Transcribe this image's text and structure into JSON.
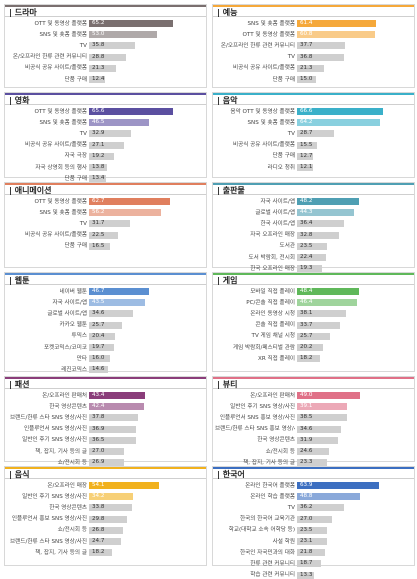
{
  "chart_data": [
    {
      "type": "bar",
      "title": "드라마",
      "color": "#7a6f6f",
      "categories": [
        "OTT 및 동영상 플랫폼",
        "SNS 및 숏폼 플랫폼",
        "TV",
        "온/오프라인 한류 관련 커뮤니티",
        "비공식 공유 사이트/플랫폼",
        "단품 구매"
      ],
      "values": [
        65.2,
        53.0,
        35.8,
        28.8,
        21.3,
        12.4
      ]
    },
    {
      "type": "bar",
      "title": "예능",
      "color": "#f5a83a",
      "categories": [
        "SNS 및 숏폼 플랫폼",
        "OTT 및 동영상 플랫폼",
        "온/오프라인 한류 관련 커뮤니티",
        "TV",
        "비공식 공유 사이트/플랫폼",
        "단품 구매"
      ],
      "values": [
        61.4,
        60.8,
        37.7,
        36.8,
        21.3,
        15.0
      ]
    },
    {
      "type": "bar",
      "title": "영화",
      "color": "#5b4fa0",
      "categories": [
        "OTT 및 동영상 플랫폼",
        "SNS 및 숏폼 플랫폼",
        "TV",
        "비공식 공유 사이트/플랫폼",
        "자국 극장",
        "자국 상영회 등의 행사",
        "단품 구매"
      ],
      "values": [
        65.6,
        46.5,
        32.9,
        27.1,
        19.2,
        13.8,
        13.4
      ]
    },
    {
      "type": "bar",
      "title": "음악",
      "color": "#3ab0c9",
      "categories": [
        "음악 OTT 및 동영상 플랫폼",
        "SNS 및 숏폼 플랫폼",
        "TV",
        "비공식 공유 사이트/플랫폼",
        "단품 구매",
        "라디오 청취"
      ],
      "values": [
        66.6,
        64.2,
        28.7,
        15.5,
        12.7,
        12.1
      ]
    },
    {
      "type": "bar",
      "title": "애니메이션",
      "color": "#e07f5e",
      "categories": [
        "OTT 및 동영상 플랫폼",
        "SNS 및 숏폼 플랫폼",
        "TV",
        "비공식 공유 사이트/플랫폼",
        "단품 구매"
      ],
      "values": [
        62.7,
        56.2,
        31.7,
        22.5,
        16.5
      ]
    },
    {
      "type": "bar",
      "title": "출판물",
      "color": "#4f9fb3",
      "categories": [
        "자국 사이트/앱",
        "글로벌 사이트/앱",
        "한국 사이트/앱",
        "자국 오프라인 매장",
        "도서관",
        "도서 박람회, 전시회",
        "한국 오프라인 매장"
      ],
      "values": [
        48.2,
        44.3,
        36.4,
        32.8,
        23.5,
        22.4,
        19.3
      ]
    },
    {
      "type": "bar",
      "title": "웹툰",
      "color": "#5b8fd1",
      "categories": [
        "네이버 웹툰",
        "자국 사이트/앱",
        "글로벌 사이트/앱",
        "카카오 웹툰",
        "투믹스",
        "포켓코믹스/코미코",
        "만타",
        "레진코믹스"
      ],
      "values": [
        46.7,
        43.5,
        34.6,
        25.7,
        20.4,
        19.7,
        16.0,
        14.6
      ]
    },
    {
      "type": "bar",
      "title": "게임",
      "color": "#5fb85a",
      "categories": [
        "모바일 직접 플레이",
        "PC/콘솔 직접 플레이",
        "온라인 동영상 시청",
        "콘솔 직접 플레이",
        "TV 게임 채널 시청",
        "게임 박람회/페스티벌 관람",
        "XR 직접 플레이"
      ],
      "values": [
        48.4,
        46.4,
        38.1,
        33.7,
        25.7,
        20.2,
        18.2
      ]
    },
    {
      "type": "bar",
      "title": "패션",
      "color": "#8a3d7a",
      "categories": [
        "온/오프라인 판매처",
        "한국 영상콘텐츠",
        "브랜드/한류 스타 SNS 영상/사진",
        "인플루언서 SNS 영상/사진",
        "일반인 후기 SNS 영상/사진",
        "책, 잡지, 기사 등의 글",
        "쇼/전시회 등"
      ],
      "values": [
        43.4,
        42.4,
        37.8,
        36.9,
        36.5,
        27.0,
        26.9
      ]
    },
    {
      "type": "bar",
      "title": "뷰티",
      "color": "#e07087",
      "categories": [
        "온/오프라인 판매처",
        "일반인 후기 SNS 영상/사진",
        "인플루언서 SNS 홍보 영상/사진",
        "브랜드/한류 스타 SNS 홍보 영상/사진",
        "한국 영상콘텐츠",
        "쇼/전시회 등",
        "책, 잡지, 기사 등의 글"
      ],
      "values": [
        49.0,
        39.1,
        38.5,
        34.6,
        31.9,
        24.6,
        23.3
      ]
    },
    {
      "type": "bar",
      "title": "음식",
      "color": "#f1b11d",
      "categories": [
        "온/오프라인 매장",
        "일반인 후기 SNS 영상/사진",
        "한국 영상콘텐츠",
        "인플루언서 홍보 SNS 영상/사진",
        "쇼/전시회 등",
        "브랜드/한류 스타 SNS 영상/사진",
        "책, 잡지, 기사 등의 글"
      ],
      "values": [
        54.1,
        34.2,
        33.8,
        29.8,
        26.8,
        24.7,
        18.2
      ]
    },
    {
      "type": "bar",
      "title": "한국어",
      "color": "#3c6fc1",
      "categories": [
        "온라인 한국어 플랫폼",
        "온라인 학습 플랫폼",
        "TV",
        "한국의 한국어 교육기관",
        "학교(대학교 소속 어학당 등)",
        "사설 학원",
        "한국인 자국민과의 대화",
        "한류 관련 커뮤니티",
        "학습 관련 커뮤니티"
      ],
      "values": [
        63.9,
        48.8,
        36.2,
        27.0,
        23.5,
        23.1,
        21.8,
        18.7,
        13.3
      ]
    }
  ]
}
